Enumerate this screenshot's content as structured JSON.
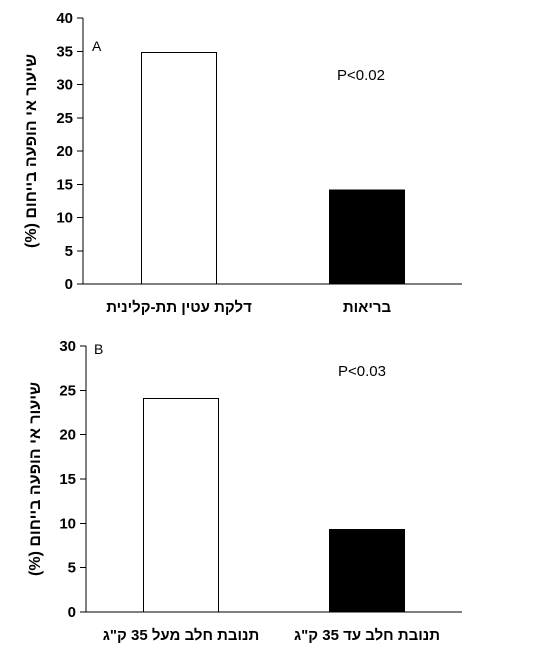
{
  "chart_data": [
    {
      "type": "bar",
      "panel_label": "A",
      "categories": [
        "דלקת עטין תת-קלינית",
        "בריאות"
      ],
      "values": [
        34.8,
        14.1
      ],
      "bar_colors": [
        "#ffffff",
        "#000000"
      ],
      "ylabel": "שיעור אי הופעה בייחום (%)",
      "ylim": [
        0,
        40
      ],
      "yticks": [
        0,
        5,
        10,
        15,
        20,
        25,
        30,
        35,
        40
      ],
      "annotation": "P<0.02",
      "grid": false
    },
    {
      "type": "bar",
      "panel_label": "B",
      "categories": [
        "תנובת חלב מעל 35 ק\"ג",
        "תנובת חלב עד 35 ק\"ג"
      ],
      "values": [
        24.1,
        9.3
      ],
      "bar_colors": [
        "#ffffff",
        "#000000"
      ],
      "ylabel": "שיעור אי הופעה בייחום (%)",
      "ylim": [
        0,
        30
      ],
      "yticks": [
        0,
        5,
        10,
        15,
        20,
        25,
        30
      ],
      "annotation": "P<0.03",
      "grid": false
    }
  ]
}
